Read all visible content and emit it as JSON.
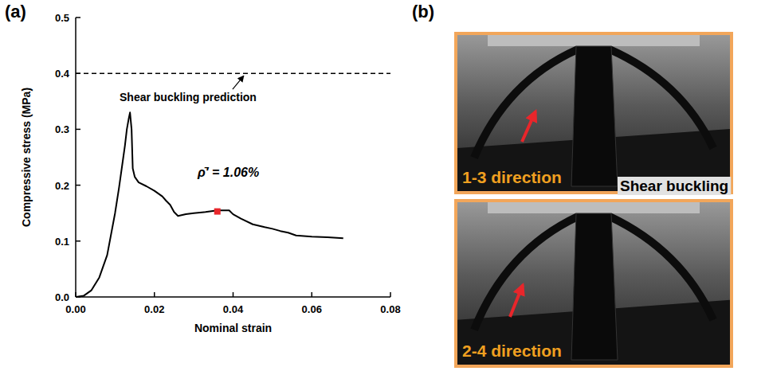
{
  "panels": [
    "(a)",
    "(b)"
  ],
  "chart_data": {
    "type": "line",
    "x_label": "Nominal strain",
    "y_label": "Compressive stress (MPa)",
    "x": [
      0,
      0.002,
      0.004,
      0.006,
      0.008,
      0.01,
      0.011,
      0.012,
      0.0125,
      0.013,
      0.0135,
      0.0138,
      0.0142,
      0.0145,
      0.015,
      0.016,
      0.018,
      0.02,
      0.022,
      0.023,
      0.024,
      0.025,
      0.026,
      0.028,
      0.03,
      0.033,
      0.036,
      0.039,
      0.04,
      0.042,
      0.045,
      0.048,
      0.05,
      0.052,
      0.054,
      0.056,
      0.06,
      0.064,
      0.068
    ],
    "values": [
      0,
      0.002,
      0.012,
      0.035,
      0.075,
      0.15,
      0.195,
      0.245,
      0.27,
      0.3,
      0.32,
      0.33,
      0.3,
      0.23,
      0.215,
      0.205,
      0.198,
      0.19,
      0.18,
      0.172,
      0.165,
      0.152,
      0.145,
      0.148,
      0.15,
      0.152,
      0.155,
      0.155,
      0.148,
      0.14,
      0.13,
      0.125,
      0.122,
      0.118,
      0.115,
      0.11,
      0.108,
      0.107,
      0.105
    ],
    "color": "#000000",
    "xlim": [
      0,
      0.08
    ],
    "xticks": [
      {
        "value": 0,
        "label": "0.00"
      },
      {
        "value": 0.02,
        "label": "0.02"
      },
      {
        "value": 0.04,
        "label": "0.04"
      },
      {
        "value": 0.06,
        "label": "0.06"
      },
      {
        "value": 0.08,
        "label": "0.08"
      }
    ],
    "ylim": [
      0,
      0.5
    ],
    "yticks": [
      {
        "value": 0,
        "label": "0.0"
      },
      0.1,
      0.2,
      0.3,
      0.4,
      0.5
    ],
    "grid": false,
    "reference_line": {
      "value": 0.4,
      "label": "Shear buckling prediction",
      "line_style": "dashed"
    },
    "highlight_point": {
      "x": 0.036,
      "y": 0.153,
      "color": "#e8262b",
      "marker": "square"
    },
    "annotations": [
      "ρ̄′ = 1.06%"
    ]
  },
  "photos": {
    "labels": [
      "1-3 direction",
      "2-4 direction"
    ],
    "caption": "Shear buckling",
    "label_color": "#f0a020",
    "border_color": "#f2a65a",
    "arrow_color": "#e8262b"
  }
}
